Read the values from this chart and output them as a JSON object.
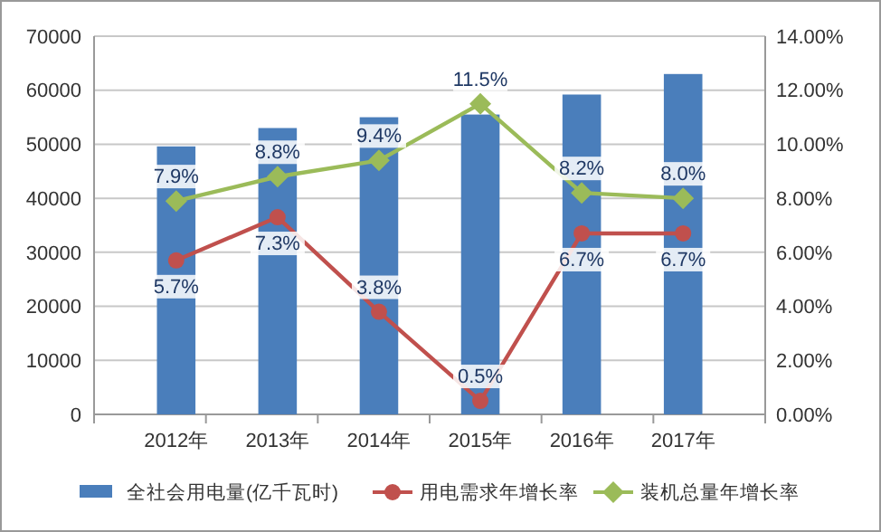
{
  "chart_data": {
    "type": "bar",
    "categories": [
      "2012年",
      "2013年",
      "2014年",
      "2015年",
      "2016年",
      "2017年"
    ],
    "series": [
      {
        "name": "全社会用电量(亿千瓦时)",
        "color": "#4a7ebb",
        "values": [
          49600,
          53000,
          55000,
          55500,
          59200,
          63000
        ]
      },
      {
        "name": "用电需求年增长率",
        "type": "line",
        "axis": "y2",
        "color": "#c0504d",
        "marker": "circle",
        "values": [
          5.7,
          7.3,
          3.8,
          0.5,
          6.7,
          6.7
        ],
        "value_labels": [
          "5.7%",
          "7.3%",
          "3.8%",
          "0.5%",
          "6.7%",
          "6.7%"
        ]
      },
      {
        "name": "装机总量年增长率",
        "type": "line",
        "axis": "y2",
        "color": "#9bbb59",
        "marker": "diamond",
        "values": [
          7.9,
          8.8,
          9.4,
          11.5,
          8.2,
          8.0
        ],
        "value_labels": [
          "7.9%",
          "8.8%",
          "9.4%",
          "11.5%",
          "8.2%",
          "8.0%"
        ]
      }
    ],
    "ylim": [
      0,
      70000
    ],
    "yticks": [
      0,
      10000,
      20000,
      30000,
      40000,
      50000,
      60000,
      70000
    ],
    "y2lim": [
      0,
      14
    ],
    "y2ticks": [
      {
        "value": 0,
        "label": "0.00%"
      },
      {
        "value": 2,
        "label": "2.00%"
      },
      {
        "value": 4,
        "label": "4.00%"
      },
      {
        "value": 6,
        "label": "6.00%"
      },
      {
        "value": 8,
        "label": "8.00%"
      },
      {
        "value": 10,
        "label": "10.00%"
      },
      {
        "value": 12,
        "label": "12.00%"
      },
      {
        "value": 14,
        "label": "14.00%"
      }
    ],
    "grid": "y",
    "legend": "bottom"
  }
}
